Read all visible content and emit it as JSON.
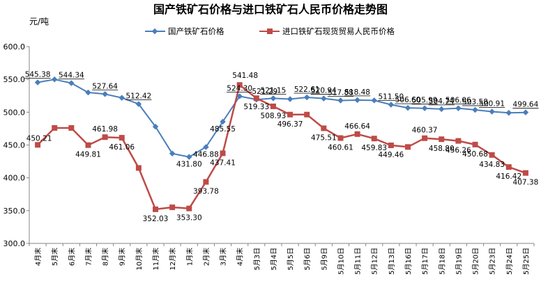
{
  "chart_data": {
    "type": "line",
    "title": "国产铁矿石价格与进口铁矿石人民币价格走势图",
    "ylabel": "元/吨",
    "ylim": [
      300,
      600
    ],
    "yticks": [
      "300.0",
      "350.0",
      "400.0",
      "450.0",
      "500.0",
      "550.0",
      "600.0"
    ],
    "categories": [
      "4月末",
      "5月末",
      "6月末",
      "7月末",
      "8月末",
      "9月末",
      "10月末",
      "11月末",
      "12月末",
      "1月末",
      "2月末",
      "3月末",
      "4月末",
      "5月3日",
      "5月4日",
      "5月5日",
      "5月6日",
      "5月9日",
      "5月10日",
      "5月11日",
      "5月12日",
      "5月13日",
      "5月16日",
      "5月17日",
      "5月18日",
      "5月19日",
      "5月20日",
      "5月23日",
      "5月24日",
      "5月25日"
    ],
    "legend_position": "top",
    "grid": false,
    "series": [
      {
        "name": "国产铁矿石价格",
        "color": "#4a7ebb",
        "marker": "diamond",
        "values": [
          545.38,
          550,
          544.34,
          530,
          527.64,
          522,
          512.42,
          478,
          437,
          431.8,
          446.88,
          485.55,
          524.3,
          519.33,
          521.15,
          520,
          522.61,
          520.94,
          517.88,
          518.48,
          518,
          511.5,
          506.6,
          505.99,
          504.74,
          506.06,
          503.58,
          500.91,
          499,
          499.64
        ],
        "labels": [
          "545.38",
          "",
          "544.34",
          "",
          "527.64",
          "",
          "512.42",
          "",
          "",
          "431.80",
          "446.88",
          "485.55",
          "524.30",
          "519.33",
          "521.15",
          "",
          "522.61",
          "520.94",
          "517.88",
          "518.48",
          "",
          "511.50",
          "506.60",
          "505.99",
          "504.74",
          "506.06",
          "503.58",
          "500.91",
          "",
          "499.64"
        ]
      },
      {
        "name": "进口铁矿石现货贸易人民币价格",
        "color": "#be4b48",
        "marker": "square",
        "values": [
          450.21,
          476,
          476,
          449.81,
          461.98,
          461.06,
          415,
          352.03,
          355,
          353.3,
          393.78,
          437.41,
          541.48,
          521.29,
          508.93,
          496.37,
          496.37,
          475.51,
          460.61,
          466.64,
          459.83,
          449.46,
          447,
          460.37,
          458.8,
          456.26,
          450.68,
          434.83,
          416.42,
          407.38
        ],
        "labels": [
          "450.21",
          "",
          "",
          "449.81",
          "461.98",
          "461.06",
          "",
          "352.03",
          "",
          "353.30",
          "393.78",
          "437.41",
          "541.48",
          "521.29",
          "508.93",
          "496.37",
          "",
          "475.51",
          "460.61",
          "466.64",
          "459.83",
          "449.46",
          "",
          "460.37",
          "458.80",
          "456.26",
          "450.68",
          "434.83",
          "416.42",
          "407.38"
        ]
      }
    ]
  }
}
